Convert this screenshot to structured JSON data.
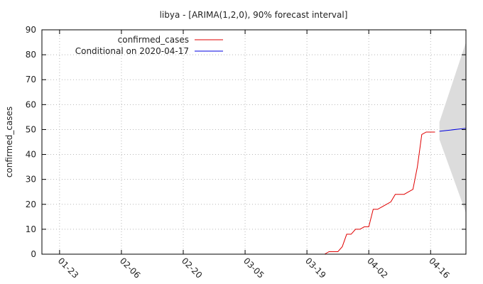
{
  "chart_data": {
    "type": "line",
    "title": "libya -  [ARIMA(1,2,0), 90% forecast interval]",
    "xlabel": "",
    "ylabel": "confirmed_cases",
    "ylim": [
      0,
      90
    ],
    "yticks": [
      0,
      10,
      20,
      30,
      40,
      50,
      60,
      70,
      80,
      90
    ],
    "xlim": [
      "2020-01-19",
      "2020-04-24"
    ],
    "xticks": [
      "01-23",
      "02-06",
      "02-20",
      "03-05",
      "03-19",
      "04-02",
      "04-16"
    ],
    "xtick_dates": [
      "2020-01-23",
      "2020-02-06",
      "2020-02-20",
      "2020-03-05",
      "2020-03-19",
      "2020-04-02",
      "2020-04-16"
    ],
    "grid": true,
    "legend_position": "top-left",
    "series": [
      {
        "name": "confirmed_cases",
        "color": "#e00000",
        "x": [
          "2020-03-23",
          "2020-03-24",
          "2020-03-25",
          "2020-03-26",
          "2020-03-27",
          "2020-03-28",
          "2020-03-29",
          "2020-03-30",
          "2020-03-31",
          "2020-04-01",
          "2020-04-02",
          "2020-04-03",
          "2020-04-04",
          "2020-04-05",
          "2020-04-06",
          "2020-04-07",
          "2020-04-08",
          "2020-04-09",
          "2020-04-10",
          "2020-04-11",
          "2020-04-12",
          "2020-04-13",
          "2020-04-14",
          "2020-04-15",
          "2020-04-16",
          "2020-04-17"
        ],
        "y": [
          0,
          1,
          1,
          1,
          3,
          8,
          8,
          10,
          10,
          11,
          11,
          18,
          18,
          19,
          20,
          21,
          24,
          24,
          24,
          25,
          26,
          35,
          48,
          49,
          49,
          49
        ]
      },
      {
        "name": "Conditional on 2020-04-17",
        "color": "#0000e0",
        "x": [
          "2020-04-18",
          "2020-04-24"
        ],
        "y": [
          49.3,
          50.5
        ]
      }
    ],
    "forecast_interval": {
      "color": "#dcdcdc",
      "x": [
        "2020-04-18",
        "2020-04-24"
      ],
      "lower": [
        46,
        16.5
      ],
      "upper": [
        53,
        85
      ]
    }
  }
}
